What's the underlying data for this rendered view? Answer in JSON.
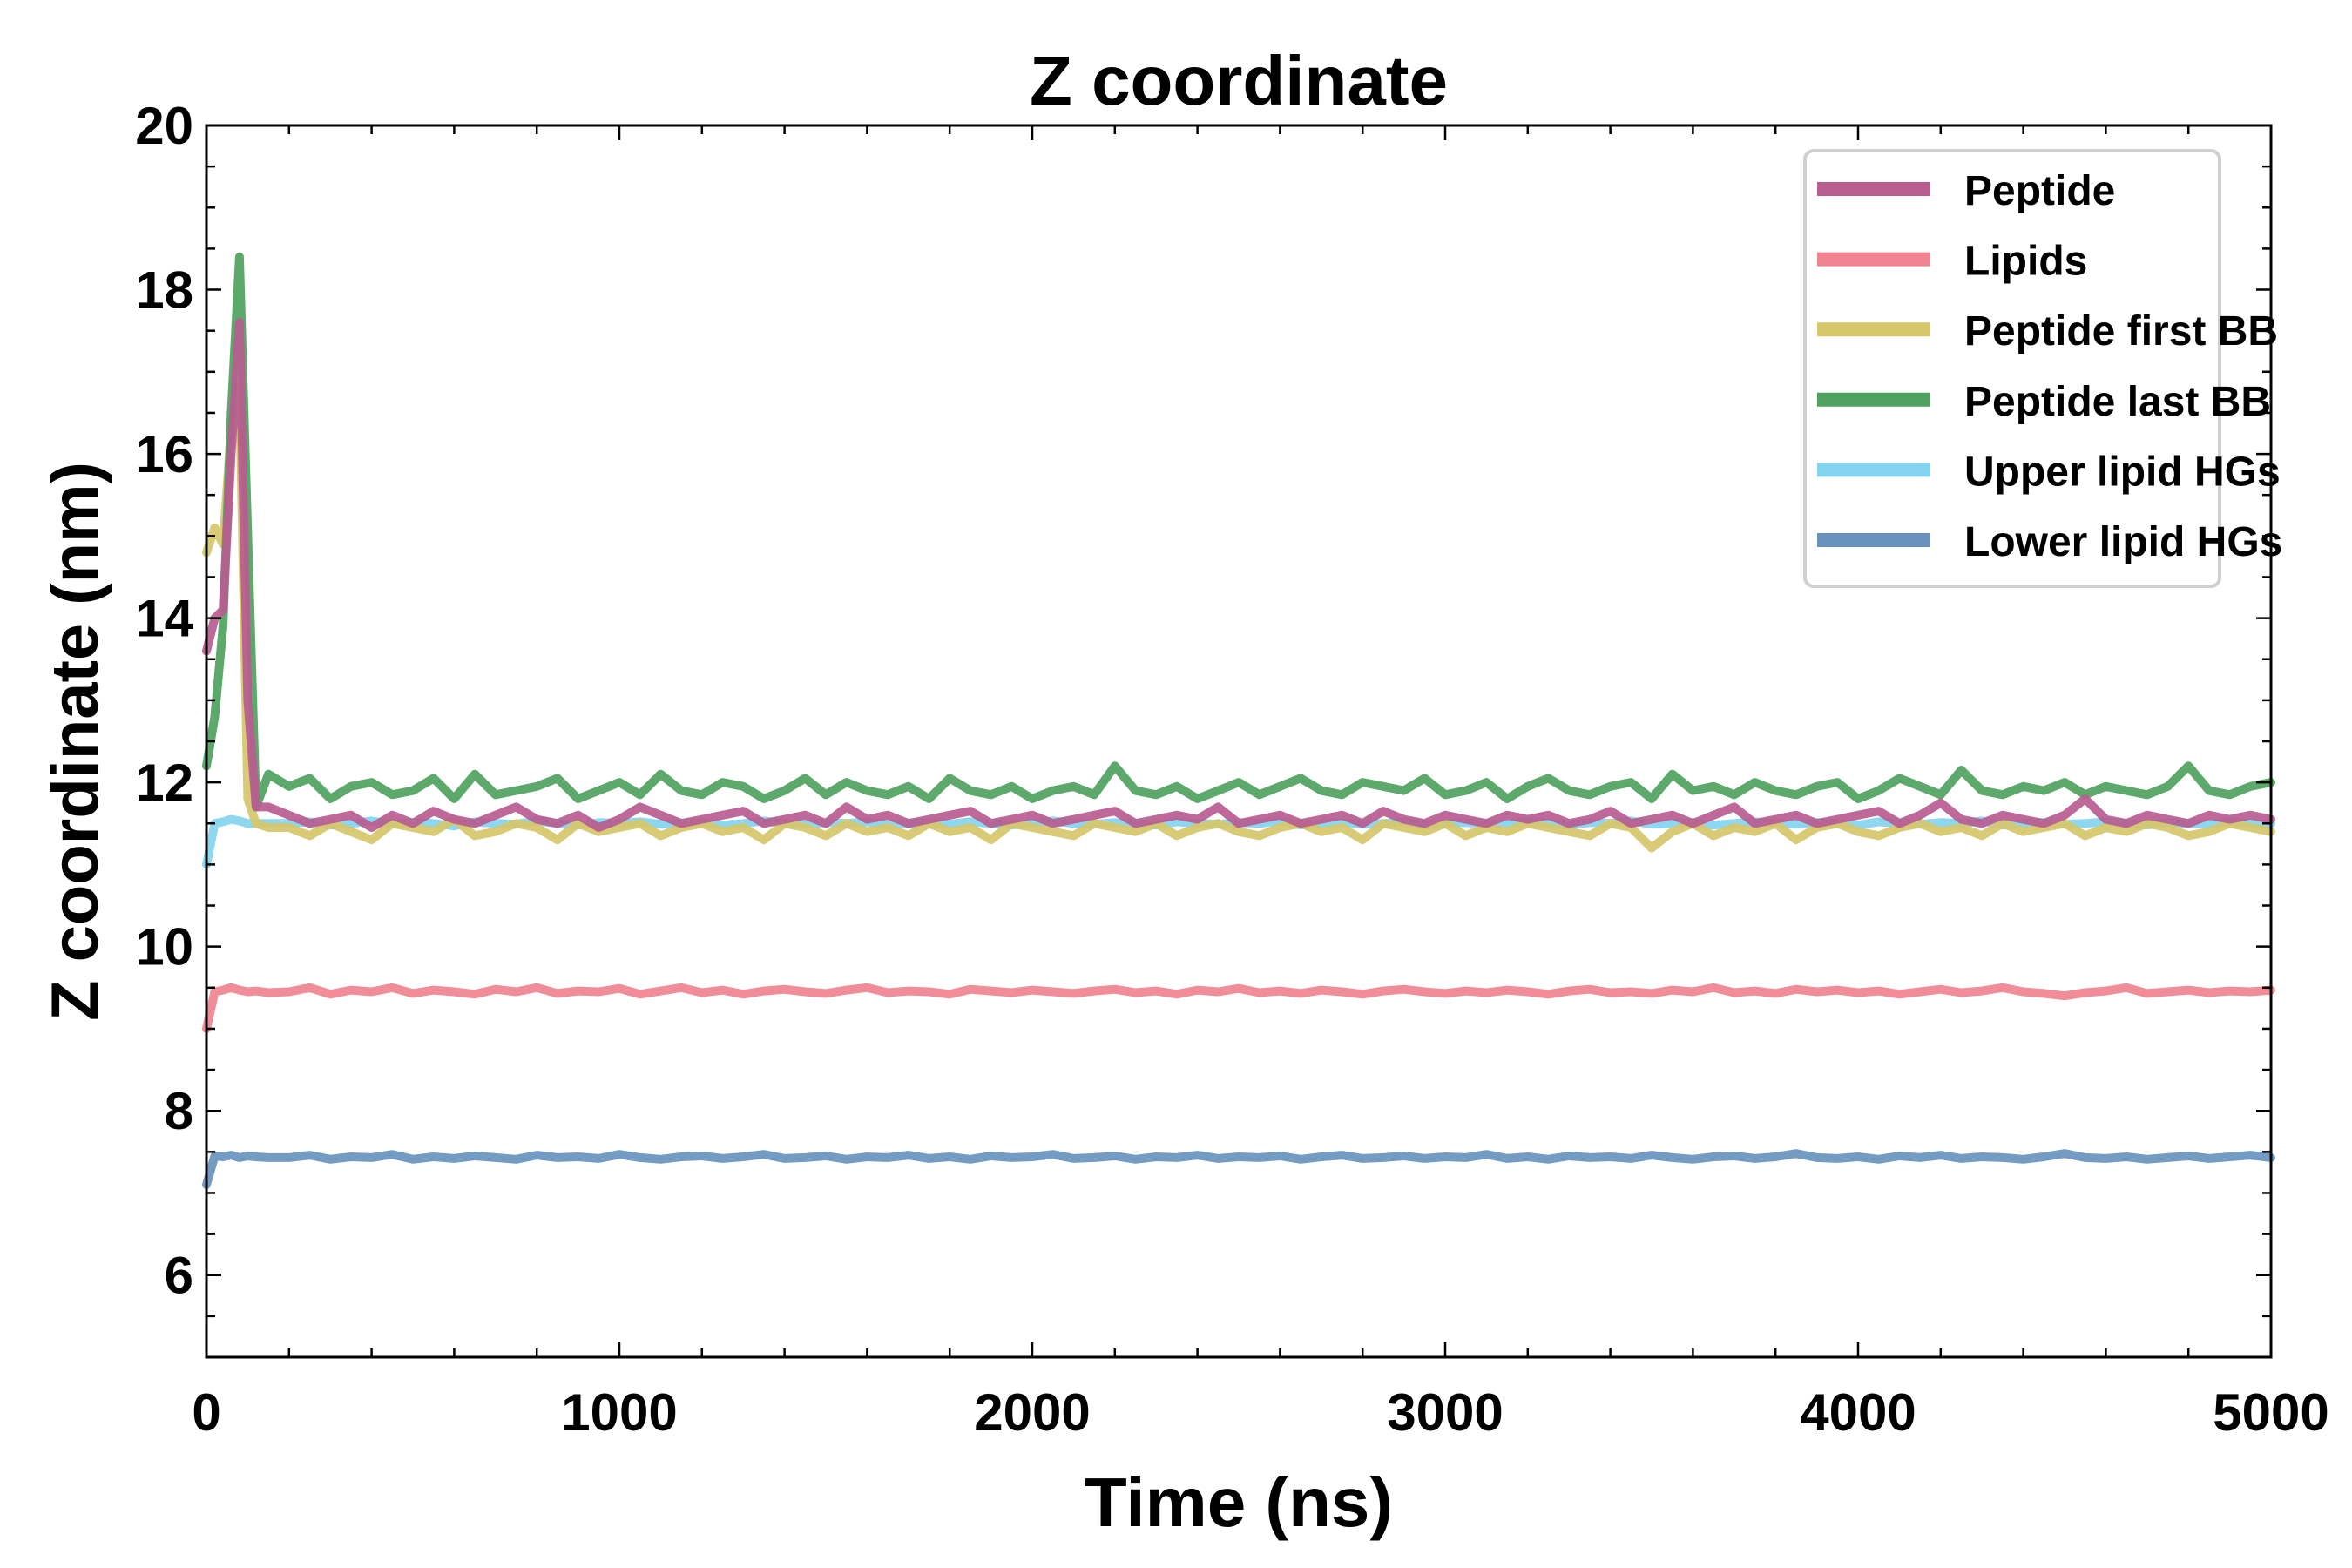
{
  "chart_data": {
    "type": "line",
    "title": "Z coordinate",
    "xlabel": "Time (ns)",
    "ylabel": "Z coordinate (nm)",
    "xlim": [
      0,
      5000
    ],
    "ylim": [
      5,
      20
    ],
    "xticks": [
      0,
      1000,
      2000,
      3000,
      4000,
      5000
    ],
    "yticks": [
      6,
      8,
      10,
      12,
      14,
      16,
      18,
      20
    ],
    "x_minor_step": 200,
    "y_minor_step": 0.5,
    "grid": false,
    "legend_position": "top-right",
    "x_start": [
      0,
      20,
      40,
      60,
      80,
      100,
      120,
      150
    ],
    "x_rest_start": 200,
    "x_rest_step": 50,
    "series": [
      {
        "name": "Peptide",
        "color": "#b95c90",
        "start": [
          13.6,
          14.0,
          14.1,
          16.0,
          17.6,
          13.0,
          11.7,
          11.7
        ],
        "values": [
          11.6,
          11.5,
          11.55,
          11.6,
          11.45,
          11.6,
          11.5,
          11.65,
          11.55,
          11.5,
          11.6,
          11.7,
          11.55,
          11.5,
          11.6,
          11.45,
          11.55,
          11.7,
          11.6,
          11.5,
          11.55,
          11.6,
          11.65,
          11.5,
          11.55,
          11.6,
          11.5,
          11.7,
          11.55,
          11.6,
          11.5,
          11.55,
          11.6,
          11.65,
          11.5,
          11.55,
          11.6,
          11.5,
          11.55,
          11.6,
          11.65,
          11.5,
          11.55,
          11.6,
          11.55,
          11.7,
          11.5,
          11.55,
          11.6,
          11.5,
          11.55,
          11.6,
          11.5,
          11.65,
          11.55,
          11.5,
          11.6,
          11.55,
          11.5,
          11.6,
          11.55,
          11.6,
          11.5,
          11.55,
          11.65,
          11.5,
          11.55,
          11.6,
          11.5,
          11.6,
          11.7,
          11.5,
          11.55,
          11.6,
          11.5,
          11.55,
          11.6,
          11.65,
          11.5,
          11.6,
          11.75,
          11.55,
          11.5,
          11.6,
          11.55,
          11.5,
          11.6,
          11.8,
          11.55,
          11.5,
          11.6,
          11.55,
          11.5,
          11.6,
          11.55,
          11.6,
          11.55
        ]
      },
      {
        "name": "Lipids",
        "color": "#ef8390",
        "start": [
          9.0,
          9.45,
          9.47,
          9.5,
          9.47,
          9.45,
          9.46,
          9.44
        ],
        "values": [
          9.45,
          9.5,
          9.42,
          9.47,
          9.45,
          9.5,
          9.43,
          9.47,
          9.45,
          9.42,
          9.48,
          9.45,
          9.5,
          9.43,
          9.46,
          9.45,
          9.49,
          9.42,
          9.46,
          9.5,
          9.44,
          9.47,
          9.42,
          9.46,
          9.48,
          9.45,
          9.43,
          9.47,
          9.5,
          9.44,
          9.46,
          9.45,
          9.42,
          9.48,
          9.46,
          9.44,
          9.47,
          9.45,
          9.43,
          9.46,
          9.48,
          9.44,
          9.46,
          9.42,
          9.47,
          9.45,
          9.49,
          9.44,
          9.46,
          9.43,
          9.47,
          9.45,
          9.42,
          9.46,
          9.48,
          9.45,
          9.43,
          9.46,
          9.44,
          9.47,
          9.45,
          9.42,
          9.46,
          9.48,
          9.44,
          9.45,
          9.43,
          9.47,
          9.45,
          9.5,
          9.44,
          9.46,
          9.43,
          9.48,
          9.45,
          9.47,
          9.44,
          9.46,
          9.42,
          9.45,
          9.48,
          9.44,
          9.46,
          9.5,
          9.45,
          9.43,
          9.4,
          9.44,
          9.46,
          9.5,
          9.43,
          9.45,
          9.47,
          9.44,
          9.46,
          9.45,
          9.47
        ]
      },
      {
        "name": "Peptide first BB",
        "color": "#d6c76a",
        "start": [
          14.8,
          15.1,
          14.9,
          16.3,
          16.8,
          11.8,
          11.5,
          11.45
        ],
        "values": [
          11.45,
          11.35,
          11.5,
          11.4,
          11.3,
          11.5,
          11.45,
          11.4,
          11.55,
          11.35,
          11.4,
          11.5,
          11.45,
          11.3,
          11.5,
          11.4,
          11.45,
          11.5,
          11.35,
          11.45,
          11.5,
          11.4,
          11.45,
          11.3,
          11.5,
          11.45,
          11.35,
          11.5,
          11.4,
          11.45,
          11.35,
          11.5,
          11.4,
          11.45,
          11.3,
          11.5,
          11.45,
          11.4,
          11.35,
          11.5,
          11.45,
          11.4,
          11.5,
          11.35,
          11.45,
          11.5,
          11.4,
          11.35,
          11.45,
          11.5,
          11.4,
          11.45,
          11.3,
          11.5,
          11.45,
          11.4,
          11.5,
          11.35,
          11.45,
          11.4,
          11.5,
          11.45,
          11.4,
          11.35,
          11.5,
          11.45,
          11.2,
          11.4,
          11.5,
          11.35,
          11.45,
          11.4,
          11.5,
          11.3,
          11.45,
          11.5,
          11.4,
          11.35,
          11.45,
          11.5,
          11.4,
          11.45,
          11.35,
          11.5,
          11.4,
          11.45,
          11.5,
          11.35,
          11.45,
          11.4,
          11.5,
          11.45,
          11.35,
          11.4,
          11.5,
          11.45,
          11.4
        ]
      },
      {
        "name": "Peptide last BB",
        "color": "#4fa25e",
        "start": [
          12.2,
          12.8,
          13.9,
          16.5,
          18.4,
          15.0,
          11.7,
          12.1
        ],
        "values": [
          11.95,
          12.05,
          11.8,
          11.95,
          12.0,
          11.85,
          11.9,
          12.05,
          11.8,
          12.1,
          11.85,
          11.9,
          11.95,
          12.05,
          11.8,
          11.9,
          12.0,
          11.85,
          12.1,
          11.9,
          11.85,
          12.0,
          11.95,
          11.8,
          11.9,
          12.05,
          11.85,
          12.0,
          11.9,
          11.85,
          11.95,
          11.8,
          12.05,
          11.9,
          11.85,
          11.95,
          11.8,
          11.9,
          11.95,
          11.85,
          12.2,
          11.9,
          11.85,
          11.95,
          11.8,
          11.9,
          12.0,
          11.85,
          11.95,
          12.05,
          11.9,
          11.85,
          12.0,
          11.95,
          11.9,
          12.05,
          11.85,
          11.9,
          12.0,
          11.8,
          11.95,
          12.05,
          11.9,
          11.85,
          11.95,
          12.0,
          11.8,
          12.1,
          11.9,
          11.95,
          11.85,
          12.0,
          11.9,
          11.85,
          11.95,
          12.0,
          11.8,
          11.9,
          12.05,
          11.95,
          11.85,
          12.15,
          11.9,
          11.85,
          11.95,
          11.9,
          12.0,
          11.85,
          11.95,
          11.9,
          11.85,
          11.95,
          12.2,
          11.9,
          11.85,
          11.95,
          12.0
        ]
      },
      {
        "name": "Upper lipid HGs",
        "color": "#83d4ef",
        "start": [
          11.0,
          11.5,
          11.52,
          11.55,
          11.53,
          11.5,
          11.5,
          11.5
        ],
        "values": [
          11.5,
          11.52,
          11.48,
          11.5,
          11.53,
          11.49,
          11.51,
          11.5,
          11.47,
          11.52,
          11.5,
          11.49,
          11.53,
          11.5,
          11.48,
          11.51,
          11.5,
          11.52,
          11.49,
          11.5,
          11.51,
          11.48,
          11.5,
          11.53,
          11.5,
          11.49,
          11.51,
          11.5,
          11.52,
          11.48,
          11.5,
          11.51,
          11.49,
          11.52,
          11.5,
          11.48,
          11.5,
          11.53,
          11.5,
          11.49,
          11.51,
          11.5,
          11.48,
          11.52,
          11.5,
          11.49,
          11.51,
          11.5,
          11.53,
          11.48,
          11.5,
          11.51,
          11.49,
          11.5,
          11.52,
          11.48,
          11.5,
          11.51,
          11.5,
          11.49,
          11.52,
          11.5,
          11.48,
          11.51,
          11.5,
          11.53,
          11.49,
          11.5,
          11.51,
          11.48,
          11.5,
          11.52,
          11.5,
          11.49,
          11.51,
          11.5,
          11.48,
          11.52,
          11.5,
          11.49,
          11.51,
          11.5,
          11.53,
          11.48,
          11.5,
          11.51,
          11.49,
          11.5,
          11.52,
          11.5,
          11.48,
          11.51,
          11.5,
          11.49,
          11.52,
          11.5,
          11.5
        ]
      },
      {
        "name": "Lower lipid HGs",
        "color": "#6892bc",
        "start": [
          7.1,
          7.45,
          7.44,
          7.46,
          7.43,
          7.45,
          7.44,
          7.43
        ],
        "values": [
          7.43,
          7.46,
          7.41,
          7.44,
          7.43,
          7.47,
          7.41,
          7.44,
          7.42,
          7.45,
          7.43,
          7.41,
          7.46,
          7.43,
          7.44,
          7.42,
          7.47,
          7.43,
          7.41,
          7.44,
          7.45,
          7.42,
          7.44,
          7.47,
          7.42,
          7.43,
          7.45,
          7.41,
          7.44,
          7.43,
          7.46,
          7.42,
          7.44,
          7.41,
          7.45,
          7.43,
          7.44,
          7.47,
          7.42,
          7.43,
          7.45,
          7.41,
          7.44,
          7.43,
          7.46,
          7.42,
          7.44,
          7.43,
          7.45,
          7.41,
          7.44,
          7.46,
          7.42,
          7.43,
          7.45,
          7.42,
          7.44,
          7.43,
          7.47,
          7.42,
          7.44,
          7.41,
          7.45,
          7.43,
          7.44,
          7.42,
          7.46,
          7.43,
          7.41,
          7.44,
          7.45,
          7.42,
          7.44,
          7.48,
          7.43,
          7.42,
          7.44,
          7.41,
          7.45,
          7.43,
          7.46,
          7.42,
          7.44,
          7.43,
          7.41,
          7.44,
          7.48,
          7.43,
          7.42,
          7.44,
          7.41,
          7.43,
          7.45,
          7.42,
          7.44,
          7.46,
          7.43
        ]
      }
    ]
  }
}
